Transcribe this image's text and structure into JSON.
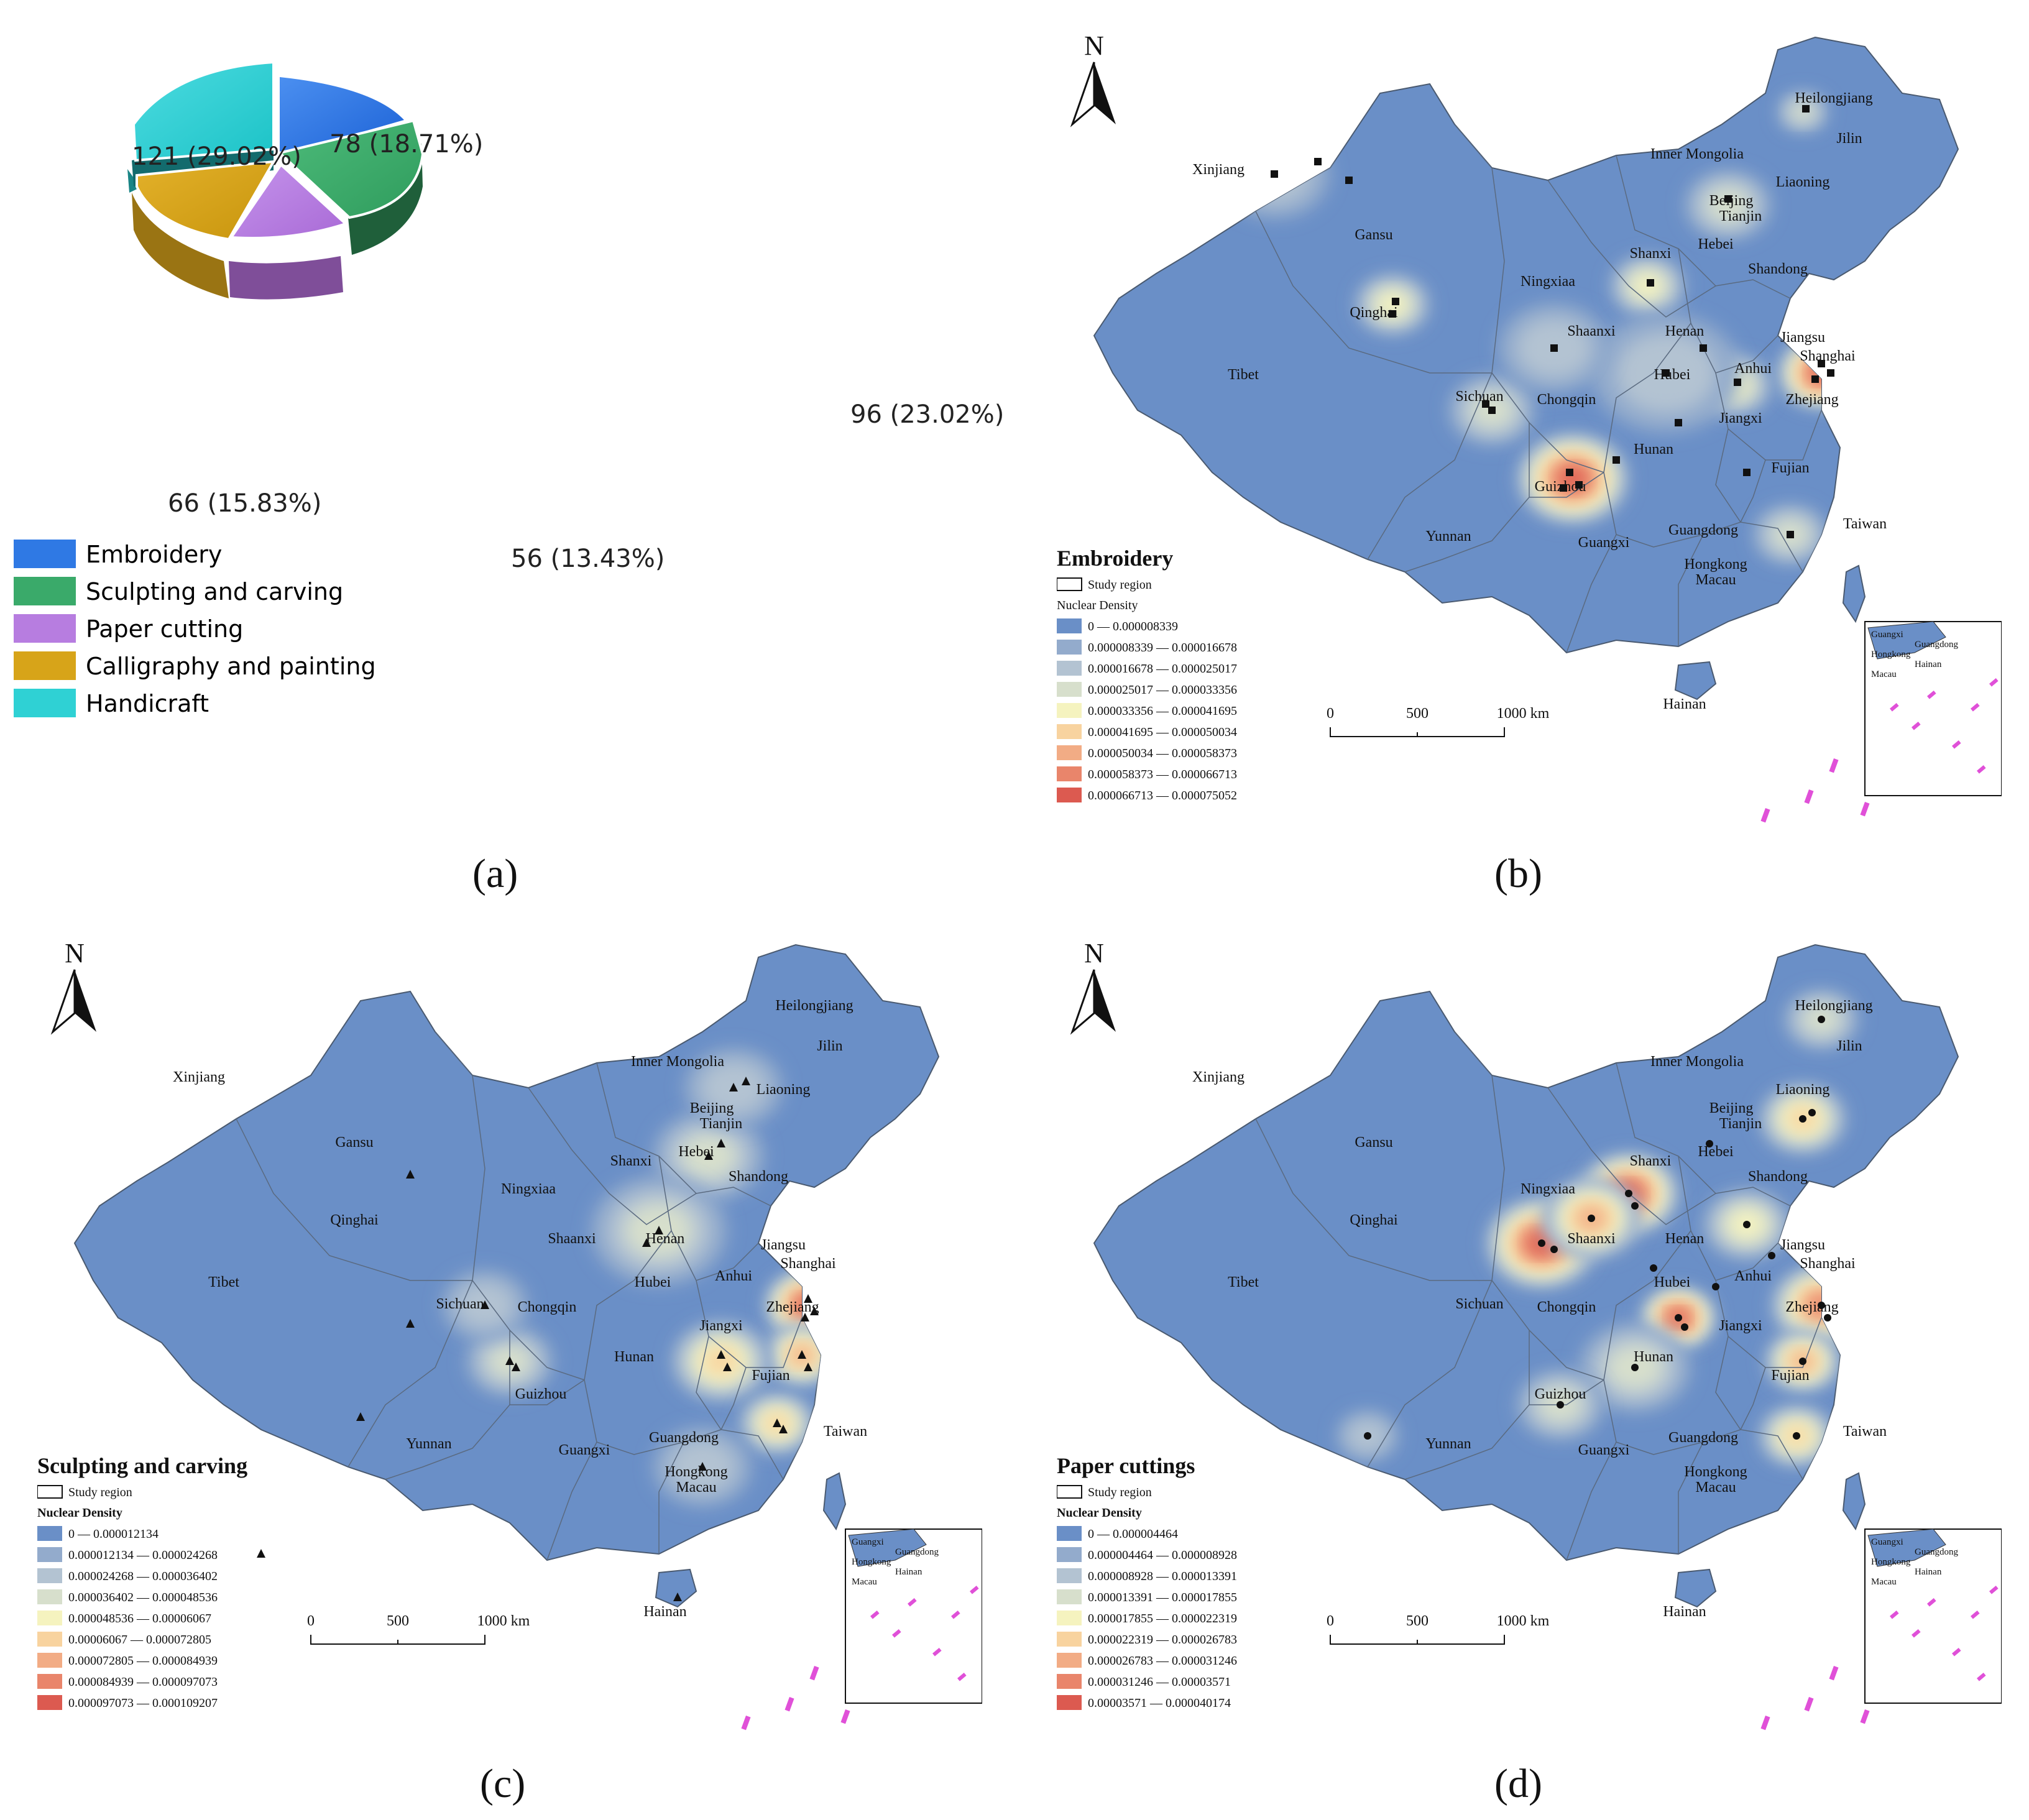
{
  "panels": {
    "a": {
      "caption": "(a)"
    },
    "b": {
      "caption": "(b)"
    },
    "c": {
      "caption": "(c)"
    },
    "d": {
      "caption": "(d)"
    }
  },
  "chart_data": {
    "type": "pie",
    "style": "3d-exploded",
    "categories": [
      "Embroidery",
      "Sculpting and carving",
      "Paper cutting",
      "Calligraphy and painting",
      "Handicraft"
    ],
    "values": [
      78,
      96,
      56,
      66,
      121
    ],
    "labels": [
      "78 (18.71%)",
      "96 (23.02%)",
      "56 (13.43%)",
      "66 (15.83%)",
      "121 (29.02%)"
    ],
    "colors": [
      "#2f79e4",
      "#3aaa6a",
      "#b77de0",
      "#d7a419",
      "#2fd1d4"
    ],
    "legend_placement": "bottom-left"
  },
  "maps": {
    "north_label": "N",
    "study_region_label": "Study region",
    "scale": {
      "ticks": [
        "0",
        "500",
        "1000 km"
      ]
    },
    "inset_labels": [
      "Guangxi",
      "Guangdong",
      "Hongkong",
      "Hainan",
      "Macau"
    ],
    "provinces": [
      "Heilongjiang",
      "Jilin",
      "Liaoning",
      "Inner Mongolia",
      "Xinjiang",
      "Gansu",
      "Beijing",
      "Tianjin",
      "Hebei",
      "Shanxi",
      "Shandong",
      "Ningxiaa",
      "Qinghai",
      "Tibet",
      "Shaanxi",
      "Henan",
      "Jiangsu",
      "Shanghai",
      "Anhui",
      "Hubei",
      "Sichuan",
      "Chongqin",
      "Zhejiang",
      "Jiangxi",
      "Hunan",
      "Guizhou",
      "Fujian",
      "Taiwan",
      "Yunnan",
      "Guangxi",
      "Guangdong",
      "Hongkong",
      "Macau",
      "Hainan"
    ],
    "ramp_colors": [
      "#6a8fc7",
      "#93abcc",
      "#b3c3d2",
      "#d7dfcc",
      "#f5f3bf",
      "#f8d39f",
      "#f2ac85",
      "#e9856b",
      "#dc5a50"
    ],
    "list": [
      {
        "title": "Embroidery",
        "density_label": "Nuclear Density",
        "legend": [
          "0 — 0.000008339",
          "0.000008339 — 0.000016678",
          "0.000016678 — 0.000025017",
          "0.000025017 — 0.000033356",
          "0.000033356 — 0.000041695",
          "0.000041695 — 0.000050034",
          "0.000050034 — 0.000058373",
          "0.000058373 — 0.000066713",
          "0.000066713 — 0.000075052"
        ],
        "marker": "square"
      },
      {
        "title": "Sculpting and carving",
        "density_label": "Nuclear Density",
        "legend": [
          "0 — 0.000012134",
          "0.000012134 — 0.000024268",
          "0.000024268 — 0.000036402",
          "0.000036402 — 0.000048536",
          "0.000048536 — 0.00006067",
          "0.00006067 — 0.000072805",
          "0.000072805 — 0.000084939",
          "0.000084939 — 0.000097073",
          "0.000097073 — 0.000109207"
        ],
        "marker": "triangle"
      },
      {
        "title": "Paper cuttings",
        "density_label": "Nuclear Density",
        "legend": [
          "0 — 0.000004464",
          "0.000004464 — 0.000008928",
          "0.000008928 — 0.000013391",
          "0.000013391 — 0.000017855",
          "0.000017855 — 0.000022319",
          "0.000022319 — 0.000026783",
          "0.000026783 — 0.000031246",
          "0.000031246 — 0.00003571",
          "0.00003571 — 0.000040174"
        ],
        "marker": "circle"
      }
    ]
  }
}
